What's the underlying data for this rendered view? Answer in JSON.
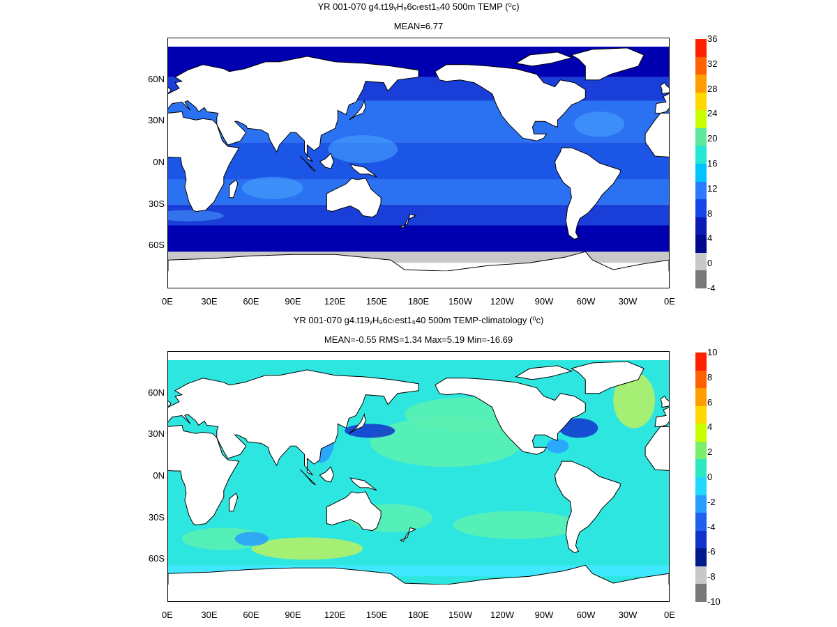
{
  "panels": [
    {
      "id": "top",
      "title": "YR 001-070 g4.t19ᵧH₉6cₜest1₅40 500m TEMP (⁰c)",
      "subtitle": "MEAN=6.77",
      "colorbar": {
        "labels": [
          "36",
          "32",
          "28",
          "24",
          "20",
          "16",
          "12",
          "8",
          "4",
          "0",
          "-4"
        ],
        "colors": [
          "#ff2000",
          "#ff6000",
          "#ff9e00",
          "#ffd800",
          "#c8ff00",
          "#5fe89a",
          "#26e6d4",
          "#00c4ff",
          "#2a7bff",
          "#1446e8",
          "#0b1cb4",
          "#000a8c",
          "#c8c8c8",
          "#787878"
        ]
      },
      "field": {
        "high_lat": "#0000b0",
        "mid_south": "#1a3ed8",
        "subtropic": "#2a72f2",
        "tropic": "#1b56e6",
        "warm_pool": "#4aa8ff",
        "land": "#ffffff",
        "ice": "#c8c8c8",
        "coast": "#000000"
      }
    },
    {
      "id": "bottom",
      "title": "YR 001-070 g4.t19ᵧH₉6cₜest1₅40 500m TEMP-climatology (⁰c)",
      "subtitle": "MEAN=-0.55   RMS=1.34   Max=5.19   Min=-16.69",
      "colorbar": {
        "labels": [
          "10",
          "8",
          "6",
          "4",
          "2",
          "0",
          "-2",
          "-4",
          "-6",
          "-8",
          "-10"
        ],
        "colors": [
          "#ff2000",
          "#ff6000",
          "#ff9e00",
          "#ffd800",
          "#c8ff00",
          "#7aee6a",
          "#2de8c0",
          "#22d8ff",
          "#2a9cff",
          "#2060ee",
          "#1033cc",
          "#001a8c",
          "#c8c8c8",
          "#787878"
        ]
      },
      "field": {
        "base": "#2ee6e0",
        "green": "#5cf0b0",
        "yellowgreen": "#b8f060",
        "blue": "#2a9cff",
        "deep": "#1033cc",
        "land": "#ffffff",
        "ice": "#40e8ff",
        "coast": "#000000"
      }
    }
  ],
  "axes": {
    "lat_labels": [
      "60N",
      "30N",
      "0N",
      "30S",
      "60S"
    ],
    "lon_labels": [
      "0E",
      "30E",
      "60E",
      "90E",
      "120E",
      "150E",
      "180E",
      "150W",
      "120W",
      "90W",
      "60W",
      "30W",
      "0E"
    ]
  }
}
